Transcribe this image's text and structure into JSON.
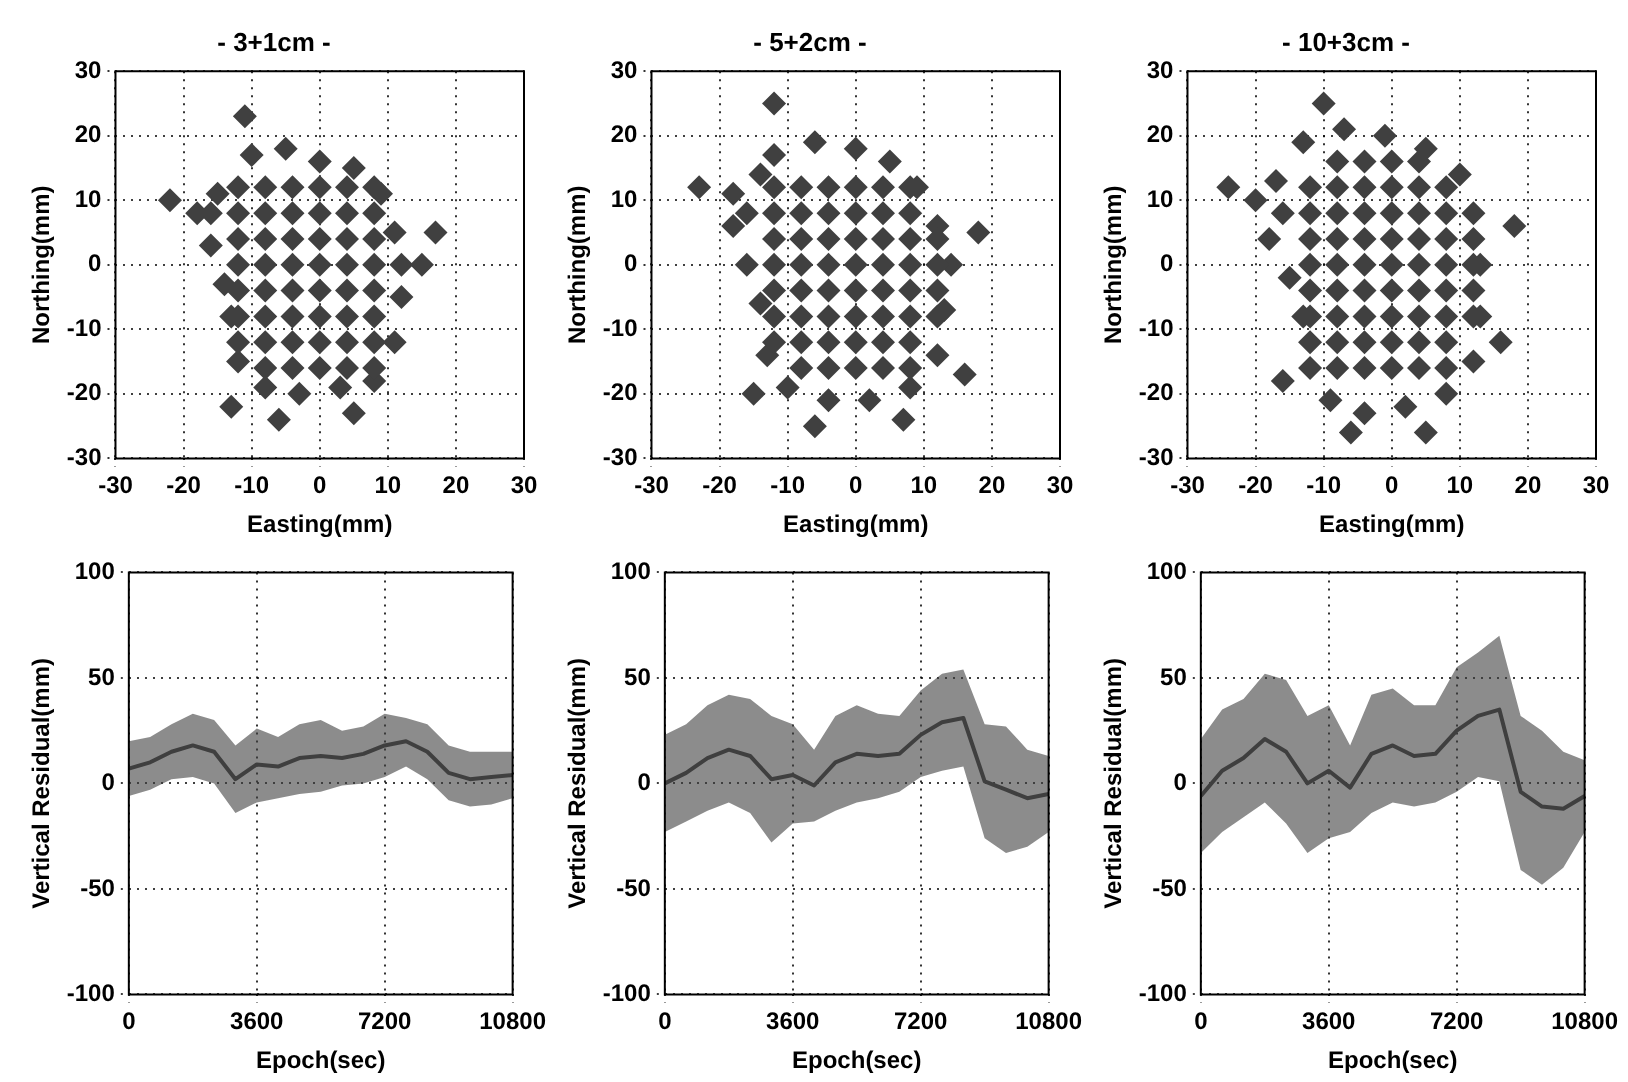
{
  "chart_data": [
    {
      "type": "scatter",
      "title": "- 3+1cm -",
      "xlabel": "Easting(mm)",
      "ylabel": "Northing(mm)",
      "xlim": [
        -30,
        30
      ],
      "ylim": [
        -30,
        30
      ],
      "xticks": [
        -30,
        -20,
        -10,
        0,
        10,
        20,
        30
      ],
      "yticks": [
        -30,
        -20,
        -10,
        0,
        10,
        20,
        30
      ],
      "grid": true,
      "legend": false,
      "marker": "diamond",
      "series": [
        {
          "color": "#404040",
          "x": [
            -10,
            -5,
            0,
            5,
            9,
            11,
            12,
            12,
            11,
            8,
            3,
            -3,
            -8,
            -12,
            -13,
            -14,
            -16,
            -18,
            -15,
            -22,
            17,
            -11,
            -6,
            -13,
            5,
            15,
            -12,
            -8,
            -4,
            0,
            4,
            8,
            -16,
            -12,
            -8,
            -4,
            0,
            4,
            8,
            -12,
            -8,
            -4,
            0,
            4,
            8,
            -12,
            -8,
            -4,
            0,
            4,
            8,
            -12,
            -8,
            -4,
            0,
            4,
            8,
            -12,
            -8,
            -4,
            0,
            4,
            8,
            -12,
            -8,
            -4,
            0,
            4,
            8,
            -8,
            -4,
            0,
            4,
            8
          ],
          "values": [
            17,
            18,
            16,
            15,
            11,
            5,
            0,
            -5,
            -12,
            -18,
            -19,
            -20,
            -19,
            -15,
            -8,
            -3,
            3,
            8,
            11,
            10,
            5,
            23,
            -24,
            -22,
            -23,
            0,
            12,
            12,
            12,
            12,
            12,
            12,
            8,
            8,
            8,
            8,
            8,
            8,
            8,
            4,
            4,
            4,
            4,
            4,
            4,
            0,
            0,
            0,
            0,
            0,
            0,
            -4,
            -4,
            -4,
            -4,
            -4,
            -4,
            -8,
            -8,
            -8,
            -8,
            -8,
            -8,
            -12,
            -12,
            -12,
            -12,
            -12,
            -12,
            -16,
            -16,
            -16,
            -16,
            -16
          ]
        }
      ]
    },
    {
      "type": "scatter",
      "title": "- 5+2cm -",
      "xlabel": "Easting(mm)",
      "ylabel": "Northing(mm)",
      "xlim": [
        -30,
        30
      ],
      "ylim": [
        -30,
        30
      ],
      "xticks": [
        -30,
        -20,
        -10,
        0,
        10,
        20,
        30
      ],
      "yticks": [
        -30,
        -20,
        -10,
        0,
        10,
        20,
        30
      ],
      "grid": true,
      "legend": false,
      "marker": "diamond",
      "series": [
        {
          "color": "#404040",
          "x": [
            -12,
            -6,
            0,
            5,
            9,
            12,
            14,
            13,
            12,
            8,
            2,
            -4,
            -10,
            -13,
            -14,
            -16,
            -18,
            -18,
            -14,
            -23,
            18,
            -12,
            -6,
            -15,
            7,
            16,
            -12,
            -8,
            -4,
            0,
            4,
            8,
            -16,
            -12,
            -8,
            -4,
            0,
            4,
            8,
            -12,
            -8,
            -4,
            0,
            4,
            8,
            12,
            -12,
            -8,
            -4,
            0,
            4,
            8,
            12,
            -12,
            -8,
            -4,
            0,
            4,
            8,
            12,
            -12,
            -8,
            -4,
            0,
            4,
            8,
            12,
            -12,
            -8,
            -4,
            0,
            4,
            8,
            -8,
            -4,
            0,
            4,
            8
          ],
          "values": [
            17,
            19,
            18,
            16,
            12,
            6,
            0,
            -7,
            -14,
            -19,
            -21,
            -21,
            -19,
            -14,
            -6,
            0,
            6,
            11,
            14,
            12,
            5,
            25,
            -25,
            -20,
            -24,
            -17,
            12,
            12,
            12,
            12,
            12,
            12,
            8,
            8,
            8,
            8,
            8,
            8,
            8,
            4,
            4,
            4,
            4,
            4,
            4,
            4,
            0,
            0,
            0,
            0,
            0,
            0,
            0,
            -4,
            -4,
            -4,
            -4,
            -4,
            -4,
            -4,
            -8,
            -8,
            -8,
            -8,
            -8,
            -8,
            -8,
            -12,
            -12,
            -12,
            -12,
            -12,
            -12,
            -16,
            -16,
            -16,
            -16,
            -16
          ]
        }
      ]
    },
    {
      "type": "scatter",
      "title": "- 10+3cm -",
      "xlabel": "Easting(mm)",
      "ylabel": "Northing(mm)",
      "xlim": [
        -30,
        30
      ],
      "ylim": [
        -30,
        30
      ],
      "xticks": [
        -30,
        -20,
        -10,
        0,
        10,
        20,
        30
      ],
      "yticks": [
        -30,
        -20,
        -10,
        0,
        10,
        20,
        30
      ],
      "grid": true,
      "legend": false,
      "marker": "diamond",
      "series": [
        {
          "color": "#404040",
          "x": [
            -13,
            -7,
            -1,
            5,
            10,
            12,
            13,
            13,
            12,
            8,
            2,
            -4,
            -9,
            -12,
            -13,
            -15,
            -18,
            -20,
            -17,
            -24,
            18,
            -10,
            -6,
            -16,
            5,
            16,
            -8,
            -4,
            0,
            4,
            -12,
            -8,
            -4,
            0,
            4,
            8,
            -16,
            -12,
            -8,
            -4,
            0,
            4,
            8,
            -12,
            -8,
            -4,
            0,
            4,
            8,
            12,
            -12,
            -8,
            -4,
            0,
            4,
            8,
            12,
            -12,
            -8,
            -4,
            0,
            4,
            8,
            12,
            -12,
            -8,
            -4,
            0,
            4,
            8,
            12,
            -12,
            -8,
            -4,
            0,
            4,
            8,
            -8,
            -4,
            0,
            4,
            8
          ],
          "values": [
            19,
            21,
            20,
            18,
            14,
            8,
            0,
            -8,
            -15,
            -20,
            -22,
            -23,
            -21,
            -16,
            -8,
            -2,
            4,
            10,
            13,
            12,
            6,
            25,
            -26,
            -18,
            -26,
            -12,
            16,
            16,
            16,
            16,
            12,
            12,
            12,
            12,
            12,
            12,
            8,
            8,
            8,
            8,
            8,
            8,
            8,
            4,
            4,
            4,
            4,
            4,
            4,
            4,
            0,
            0,
            0,
            0,
            0,
            0,
            0,
            -4,
            -4,
            -4,
            -4,
            -4,
            -4,
            -4,
            -8,
            -8,
            -8,
            -8,
            -8,
            -8,
            -8,
            -12,
            -12,
            -12,
            -12,
            -12,
            -12,
            -16,
            -16,
            -16,
            -16,
            -16
          ]
        }
      ]
    },
    {
      "type": "line",
      "xlabel": "Epoch(sec)",
      "ylabel": "Vertical Residual(mm)",
      "xlim": [
        0,
        10800
      ],
      "ylim": [
        -100,
        100
      ],
      "xticks": [
        0,
        3600,
        7200,
        10800
      ],
      "yticks": [
        -100,
        -50,
        0,
        50,
        100
      ],
      "grid": true,
      "legend": false,
      "marker": "none",
      "x": [
        0,
        600,
        1200,
        1800,
        2400,
        3000,
        3600,
        4200,
        4800,
        5400,
        6000,
        6600,
        7200,
        7800,
        8400,
        9000,
        9600,
        10200,
        10800
      ],
      "series": [
        {
          "color": "#404040",
          "values": [
            7,
            10,
            15,
            18,
            15,
            2,
            9,
            8,
            12,
            13,
            12,
            14,
            18,
            20,
            15,
            5,
            2,
            3,
            4
          ],
          "upper": [
            20,
            22,
            28,
            33,
            30,
            18,
            26,
            22,
            28,
            30,
            25,
            27,
            33,
            31,
            28,
            18,
            15,
            15,
            15
          ],
          "lower": [
            -6,
            -3,
            2,
            3,
            0,
            -14,
            -9,
            -7,
            -5,
            -4,
            -1,
            0,
            3,
            8,
            2,
            -8,
            -11,
            -10,
            -7
          ]
        }
      ]
    },
    {
      "type": "line",
      "xlabel": "Epoch(sec)",
      "ylabel": "Vertical Residual(mm)",
      "xlim": [
        0,
        10800
      ],
      "ylim": [
        -100,
        100
      ],
      "xticks": [
        0,
        3600,
        7200,
        10800
      ],
      "yticks": [
        -100,
        -50,
        0,
        50,
        100
      ],
      "grid": true,
      "legend": false,
      "marker": "none",
      "x": [
        0,
        600,
        1200,
        1800,
        2400,
        3000,
        3600,
        4200,
        4800,
        5400,
        6000,
        6600,
        7200,
        7800,
        8400,
        9000,
        9600,
        10200,
        10800
      ],
      "series": [
        {
          "color": "#404040",
          "values": [
            0,
            5,
            12,
            16,
            13,
            2,
            4,
            -1,
            10,
            14,
            13,
            14,
            23,
            29,
            31,
            1,
            -3,
            -7,
            -5
          ],
          "upper": [
            23,
            28,
            37,
            42,
            40,
            32,
            28,
            16,
            32,
            37,
            33,
            32,
            44,
            52,
            54,
            28,
            27,
            16,
            13
          ],
          "lower": [
            -23,
            -18,
            -13,
            -9,
            -14,
            -28,
            -19,
            -18,
            -13,
            -9,
            -7,
            -4,
            3,
            6,
            8,
            -26,
            -33,
            -30,
            -23
          ]
        }
      ]
    },
    {
      "type": "line",
      "xlabel": "Epoch(sec)",
      "ylabel": "Vertical Residual(mm)",
      "xlim": [
        0,
        10800
      ],
      "ylim": [
        -100,
        100
      ],
      "xticks": [
        0,
        3600,
        7200,
        10800
      ],
      "yticks": [
        -100,
        -50,
        0,
        50,
        100
      ],
      "grid": true,
      "legend": false,
      "marker": "none",
      "x": [
        0,
        600,
        1200,
        1800,
        2400,
        3000,
        3600,
        4200,
        4800,
        5400,
        6000,
        6600,
        7200,
        7800,
        8400,
        9000,
        9600,
        10200,
        10800
      ],
      "series": [
        {
          "color": "#404040",
          "values": [
            -6,
            6,
            12,
            21,
            15,
            0,
            6,
            -2,
            14,
            18,
            13,
            14,
            25,
            32,
            35,
            -4,
            -11,
            -12,
            -6
          ],
          "upper": [
            21,
            35,
            40,
            52,
            49,
            32,
            37,
            18,
            42,
            45,
            37,
            37,
            55,
            62,
            70,
            32,
            25,
            15,
            11
          ],
          "lower": [
            -33,
            -23,
            -16,
            -9,
            -19,
            -33,
            -26,
            -23,
            -14,
            -9,
            -11,
            -9,
            -4,
            3,
            1,
            -41,
            -48,
            -40,
            -23
          ]
        }
      ]
    }
  ]
}
